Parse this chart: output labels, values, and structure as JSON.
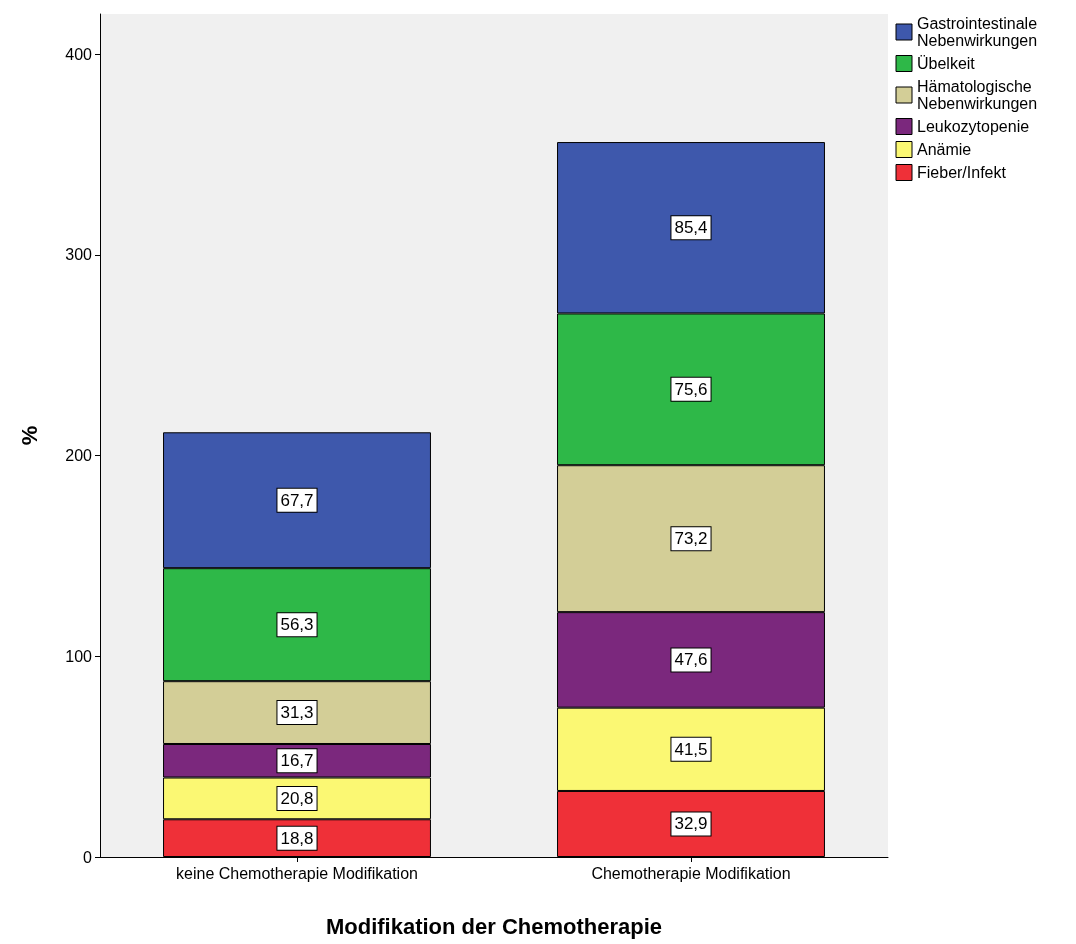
{
  "chart_data": {
    "type": "bar",
    "stacked": true,
    "xlabel": "Modifikation der Chemotherapie",
    "ylabel": "%",
    "categories": [
      "keine Chemotherapie Modifikation",
      "Chemotherapie Modifikation"
    ],
    "series": [
      {
        "name": "Fieber/Infekt",
        "color": "#ef3038",
        "values": [
          18.8,
          32.9
        ],
        "value_labels": [
          "18,8",
          "32,9"
        ]
      },
      {
        "name": "Anämie",
        "color": "#fbf873",
        "values": [
          20.8,
          41.5
        ],
        "value_labels": [
          "20,8",
          "41,5"
        ]
      },
      {
        "name": "Leukozytopenie",
        "color": "#7b287d",
        "values": [
          16.7,
          47.6
        ],
        "value_labels": [
          "16,7",
          "47,6"
        ]
      },
      {
        "name": "Hämatologische Nebenwirkungen",
        "color": "#d3ce97",
        "values": [
          31.3,
          73.2
        ],
        "value_labels": [
          "31,3",
          "73,2"
        ]
      },
      {
        "name": "Übelkeit",
        "color": "#2eb848",
        "values": [
          56.3,
          75.6
        ],
        "value_labels": [
          "56,3",
          "75,6"
        ]
      },
      {
        "name": "Gastrointestinale Nebenwirkungen",
        "color": "#3e58ac",
        "values": [
          67.7,
          85.4
        ],
        "value_labels": [
          "67,7",
          "85,4"
        ]
      }
    ],
    "ylim": [
      0,
      420
    ],
    "yticks": [
      0,
      100,
      200,
      300,
      400
    ],
    "grid": false,
    "legend": "top right"
  }
}
